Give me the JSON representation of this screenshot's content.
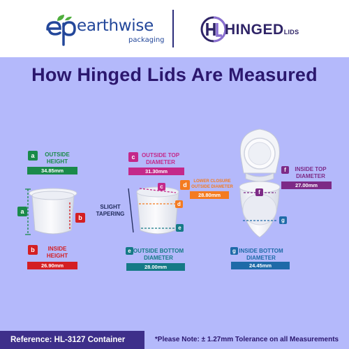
{
  "brand": {
    "earthwise_name": "earthwise",
    "earthwise_sub": "packaging",
    "hinged_main": "HINGED",
    "hinged_small": "LIDS"
  },
  "title": "How Hinged Lids Are Measured",
  "measurements": {
    "a": {
      "tag": "a",
      "label_1": "OUTSIDE",
      "label_2": "HEIGHT",
      "value": "34.85mm",
      "color": "#1a8a4a"
    },
    "b": {
      "tag": "b",
      "label_1": "INSIDE",
      "label_2": "HEIGHT",
      "value": "26.90mm",
      "color": "#d41f23"
    },
    "c": {
      "tag": "c",
      "label_1": "OUTSIDE TOP",
      "label_2": "DIAMETER",
      "value": "31.30mm",
      "color": "#c4288a"
    },
    "d": {
      "tag": "d",
      "label_1": "LOWER CLOSURE",
      "label_2": "OUTSIDE DIAMETER",
      "value": "28.80mm",
      "color": "#f47b20"
    },
    "e": {
      "tag": "e",
      "label_1": "OUTSIDE BOTTOM",
      "label_2": "DIAMETER",
      "value": "28.00mm",
      "color": "#157a86"
    },
    "f": {
      "tag": "f",
      "label_1": "INSIDE TOP",
      "label_2": "DIAMETER",
      "value": "27.00mm",
      "color": "#7d2a86"
    },
    "g": {
      "tag": "g",
      "label_1": "INSIDE BOTTOM",
      "label_2": "DIAMETER",
      "value": "24.45mm",
      "color": "#1e6aa8"
    }
  },
  "tapering": {
    "line_1": "SLIGHT",
    "line_2": "TAPERING"
  },
  "footer": {
    "reference": "Reference: HL-3127 Container",
    "note": "*Please Note: ± 1.27mm Tolerance on all Measurements"
  }
}
